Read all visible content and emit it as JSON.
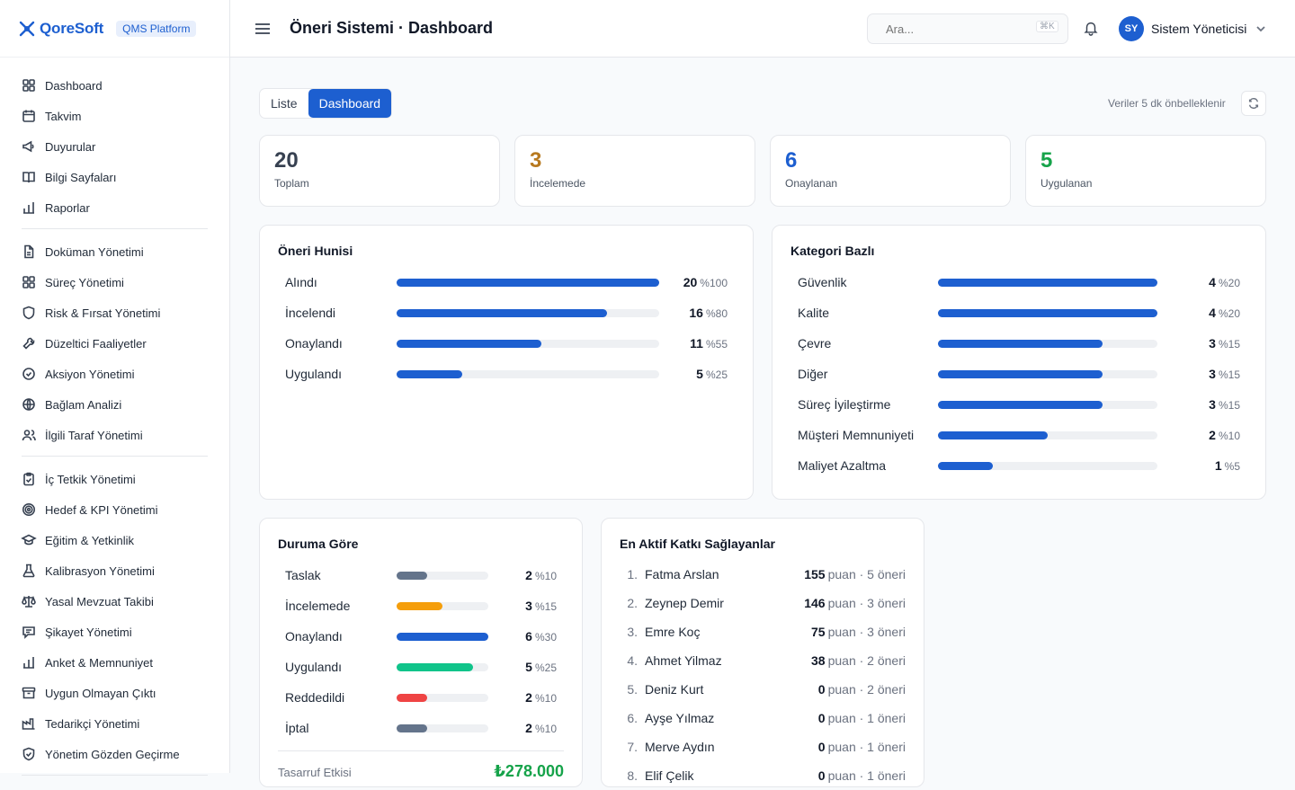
{
  "brand": {
    "name": "QoreSoft",
    "badge": "QMS Platform"
  },
  "header": {
    "title": "Öneri Sistemi · Dashboard",
    "search_placeholder": "Ara...",
    "shortcut": "⌘K",
    "user_initials": "SY",
    "user_name": "Sistem Yöneticisi"
  },
  "sidebar": {
    "groups": [
      [
        {
          "label": "Dashboard",
          "icon": "grid-icon"
        },
        {
          "label": "Takvim",
          "icon": "calendar-icon"
        },
        {
          "label": "Duyurular",
          "icon": "megaphone-icon"
        },
        {
          "label": "Bilgi Sayfaları",
          "icon": "book-icon"
        },
        {
          "label": "Raporlar",
          "icon": "bar-chart-icon"
        }
      ],
      [
        {
          "label": "Doküman Yönetimi",
          "icon": "document-icon"
        },
        {
          "label": "Süreç Yönetimi",
          "icon": "grid-icon"
        },
        {
          "label": "Risk & Fırsat Yönetimi",
          "icon": "shield-icon"
        },
        {
          "label": "Düzeltici Faaliyetler",
          "icon": "wrench-icon"
        },
        {
          "label": "Aksiyon Yönetimi",
          "icon": "check-circle-icon"
        },
        {
          "label": "Bağlam Analizi",
          "icon": "globe-icon"
        },
        {
          "label": "İlgili Taraf Yönetimi",
          "icon": "users-icon"
        }
      ],
      [
        {
          "label": "İç Tetkik Yönetimi",
          "icon": "clipboard-icon"
        },
        {
          "label": "Hedef & KPI Yönetimi",
          "icon": "target-icon"
        },
        {
          "label": "Eğitim & Yetkinlik",
          "icon": "graduation-cap-icon"
        },
        {
          "label": "Kalibrasyon Yönetimi",
          "icon": "flask-icon"
        },
        {
          "label": "Yasal Mevzuat Takibi",
          "icon": "scale-icon"
        },
        {
          "label": "Şikayet Yönetimi",
          "icon": "message-icon"
        },
        {
          "label": "Anket & Memnuniyet",
          "icon": "bar-chart-icon"
        },
        {
          "label": "Uygun Olmayan Çıktı",
          "icon": "archive-icon"
        },
        {
          "label": "Tedarikçi Yönetimi",
          "icon": "factory-icon"
        },
        {
          "label": "Yönetim Gözden Geçirme",
          "icon": "shield-check-icon"
        }
      ]
    ]
  },
  "toolbar": {
    "tab_list": "Liste",
    "tab_dashboard": "Dashboard",
    "cache_note": "Veriler 5 dk önbelleklenir"
  },
  "stats": [
    {
      "value": "20",
      "label": "Toplam",
      "color": "#374151"
    },
    {
      "value": "3",
      "label": "İncelemede",
      "color": "#b7791f"
    },
    {
      "value": "6",
      "label": "Onaylanan",
      "color": "#1d5fd0"
    },
    {
      "value": "5",
      "label": "Uygulanan",
      "color": "#16a34a"
    }
  ],
  "funnel": {
    "title": "Öneri Hunisi",
    "rows": [
      {
        "label": "Alındı",
        "value": 20,
        "pct": "%100",
        "fraction": 1.0
      },
      {
        "label": "İncelendi",
        "value": 16,
        "pct": "%80",
        "fraction": 0.8
      },
      {
        "label": "Onaylandı",
        "value": 11,
        "pct": "%55",
        "fraction": 0.55
      },
      {
        "label": "Uygulandı",
        "value": 5,
        "pct": "%25",
        "fraction": 0.25
      }
    ]
  },
  "category": {
    "title": "Kategori Bazlı",
    "rows": [
      {
        "label": "Güvenlik",
        "value": 4,
        "pct": "%20",
        "fraction": 1.0
      },
      {
        "label": "Kalite",
        "value": 4,
        "pct": "%20",
        "fraction": 1.0
      },
      {
        "label": "Çevre",
        "value": 3,
        "pct": "%15",
        "fraction": 0.75
      },
      {
        "label": "Diğer",
        "value": 3,
        "pct": "%15",
        "fraction": 0.75
      },
      {
        "label": "Süreç İyileştirme",
        "value": 3,
        "pct": "%15",
        "fraction": 0.75
      },
      {
        "label": "Müşteri Memnuniyeti",
        "value": 2,
        "pct": "%10",
        "fraction": 0.5
      },
      {
        "label": "Maliyet Azaltma",
        "value": 1,
        "pct": "%5",
        "fraction": 0.25
      }
    ]
  },
  "status": {
    "title": "Duruma Göre",
    "rows": [
      {
        "label": "Taslak",
        "value": 2,
        "pct": "%10",
        "fraction": 0.333,
        "color": "#64748b"
      },
      {
        "label": "İncelemede",
        "value": 3,
        "pct": "%15",
        "fraction": 0.5,
        "color": "#f59e0b"
      },
      {
        "label": "Onaylandı",
        "value": 6,
        "pct": "%30",
        "fraction": 1.0,
        "color": "#1d5fd0"
      },
      {
        "label": "Uygulandı",
        "value": 5,
        "pct": "%25",
        "fraction": 0.833,
        "color": "#10c48a"
      },
      {
        "label": "Reddedildi",
        "value": 2,
        "pct": "%10",
        "fraction": 0.333,
        "color": "#ef4444"
      },
      {
        "label": "İptal",
        "value": 2,
        "pct": "%10",
        "fraction": 0.333,
        "color": "#64748b"
      }
    ],
    "savings_label": "Tasarruf Etkisi",
    "savings_value": "₺278.000"
  },
  "contributors": {
    "title": "En Aktif Katkı Sağlayanlar",
    "rows": [
      {
        "rank": "1.",
        "name": "Fatma Arslan",
        "points": "155",
        "detail": "puan · 5 öneri"
      },
      {
        "rank": "2.",
        "name": "Zeynep Demir",
        "points": "146",
        "detail": "puan · 3 öneri"
      },
      {
        "rank": "3.",
        "name": "Emre Koç",
        "points": "75",
        "detail": "puan · 3 öneri"
      },
      {
        "rank": "4.",
        "name": "Ahmet Yilmaz",
        "points": "38",
        "detail": "puan · 2 öneri"
      },
      {
        "rank": "5.",
        "name": "Deniz Kurt",
        "points": "0",
        "detail": "puan · 2 öneri"
      },
      {
        "rank": "6.",
        "name": "Ayşe Yılmaz",
        "points": "0",
        "detail": "puan · 1 öneri"
      },
      {
        "rank": "7.",
        "name": "Merve Aydın",
        "points": "0",
        "detail": "puan · 1 öneri"
      },
      {
        "rank": "8.",
        "name": "Elif Çelik",
        "points": "0",
        "detail": "puan · 1 öneri"
      }
    ]
  }
}
